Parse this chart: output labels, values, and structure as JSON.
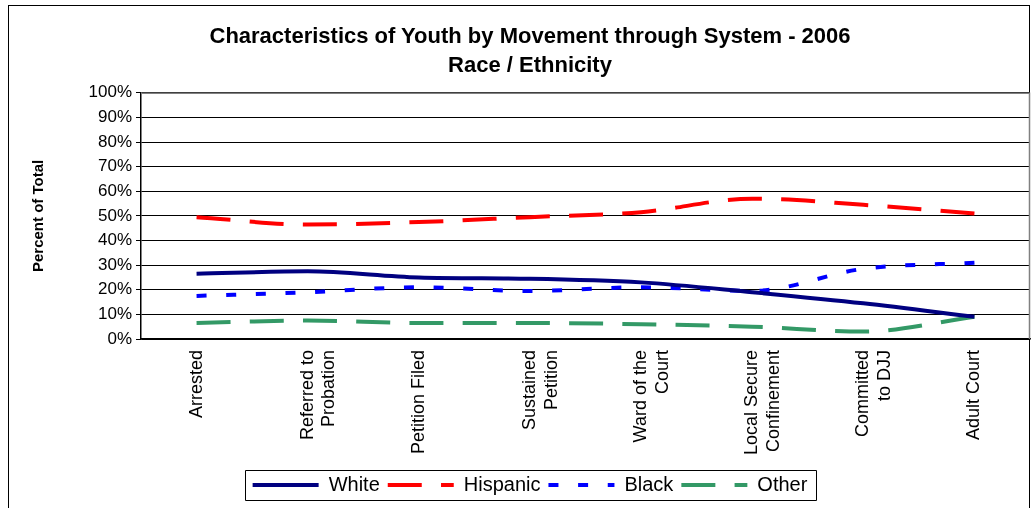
{
  "chart_data": {
    "type": "line",
    "title": "Characteristics of Youth by Movement through System - 2006",
    "subtitle": "Race / Ethnicity",
    "ylabel": "Percent of Total",
    "categories": [
      "Arrested",
      "Referred to Probation",
      "Petition Filed",
      "Sustained Petition",
      "Ward of the Court",
      "Local Secure Confinement",
      "Committed to DJJ",
      "Adult Court"
    ],
    "series": [
      {
        "name": "White",
        "color": "#000080",
        "line_style": "solid",
        "values": [
          26.5,
          27.5,
          25,
          24.5,
          23,
          19,
          14.5,
          9
        ]
      },
      {
        "name": "Hispanic",
        "color": "#ff0000",
        "line_style": "dashed",
        "values": [
          49.5,
          46.5,
          47.5,
          49.5,
          51.5,
          57,
          54.5,
          51
        ]
      },
      {
        "name": "Black",
        "color": "#0000ff",
        "line_style": "dotted",
        "values": [
          17.5,
          19,
          21,
          19.5,
          21,
          19.5,
          28.5,
          31
        ]
      },
      {
        "name": "Other",
        "color": "#339966",
        "line_style": "dashed",
        "values": [
          6.5,
          7.5,
          6.5,
          6.5,
          6,
          5,
          3,
          9
        ]
      }
    ],
    "ylim": [
      0,
      100
    ],
    "yticks": [
      {
        "value": 0,
        "label": "0%"
      },
      {
        "value": 10,
        "label": "10%"
      },
      {
        "value": 20,
        "label": "20%"
      },
      {
        "value": 30,
        "label": "30%"
      },
      {
        "value": 40,
        "label": "40%"
      },
      {
        "value": 50,
        "label": "50%"
      },
      {
        "value": 60,
        "label": "60%"
      },
      {
        "value": 70,
        "label": "70%"
      },
      {
        "value": 80,
        "label": "80%"
      },
      {
        "value": 90,
        "label": "90%"
      },
      {
        "value": 100,
        "label": "100%"
      }
    ],
    "grid": "y",
    "legend": "bottom"
  }
}
